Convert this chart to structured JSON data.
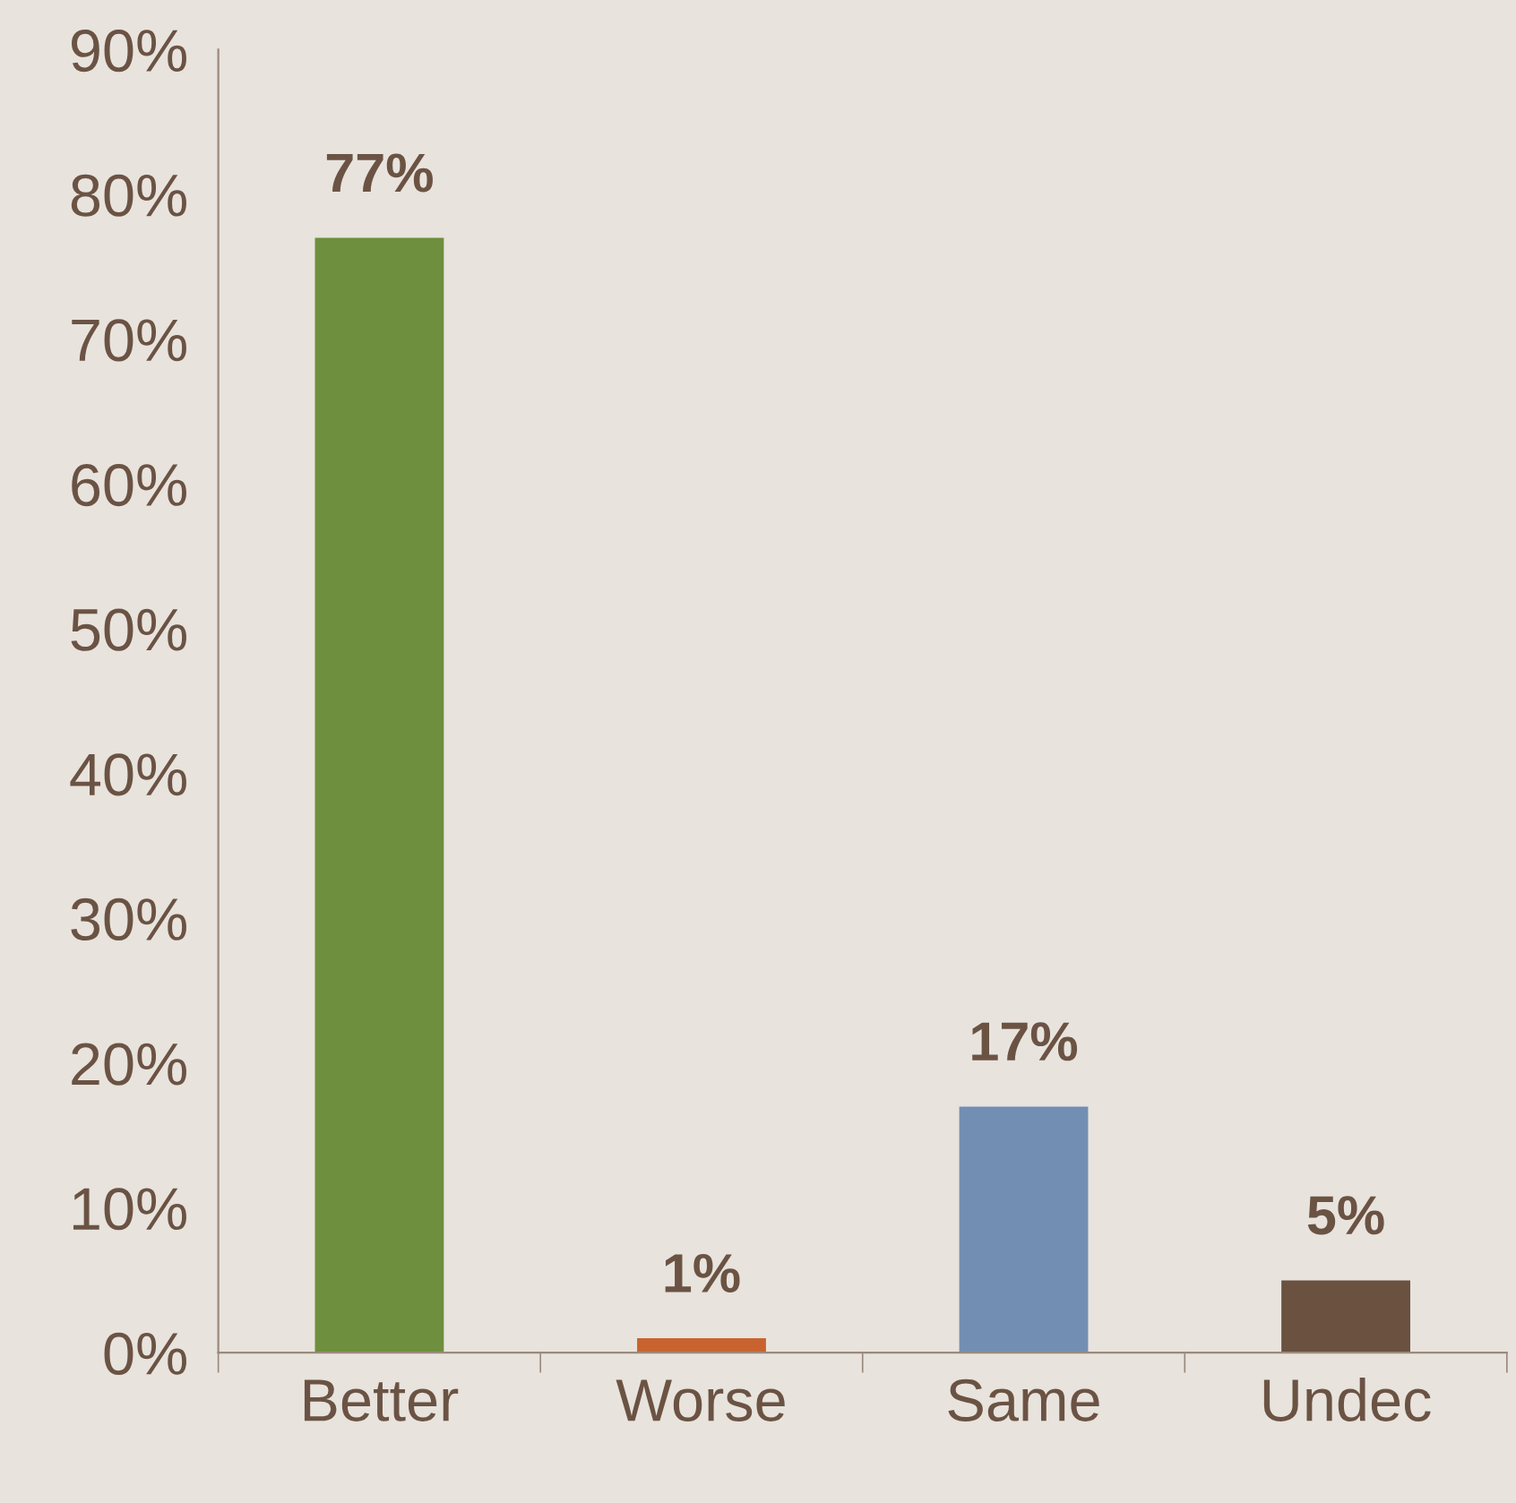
{
  "chart_data": {
    "type": "bar",
    "categories": [
      "Better",
      "Worse",
      "Same",
      "Undec"
    ],
    "values": [
      77,
      1,
      17,
      5
    ],
    "colors": [
      "#6e8f3d",
      "#c8632f",
      "#738eb3",
      "#6a5140"
    ],
    "value_labels": [
      "77%",
      "1%",
      "17%",
      "5%"
    ],
    "ylim": [
      0,
      90
    ],
    "yticks": [
      {
        "value": 0,
        "label": "0%"
      },
      {
        "value": 10,
        "label": "10%"
      },
      {
        "value": 20,
        "label": "20%"
      },
      {
        "value": 30,
        "label": "30%"
      },
      {
        "value": 40,
        "label": "40%"
      },
      {
        "value": 50,
        "label": "50%"
      },
      {
        "value": 60,
        "label": "60%"
      },
      {
        "value": 70,
        "label": "70%"
      },
      {
        "value": 80,
        "label": "80%"
      },
      {
        "value": 90,
        "label": "90%"
      }
    ],
    "grid": false,
    "legend": false
  }
}
